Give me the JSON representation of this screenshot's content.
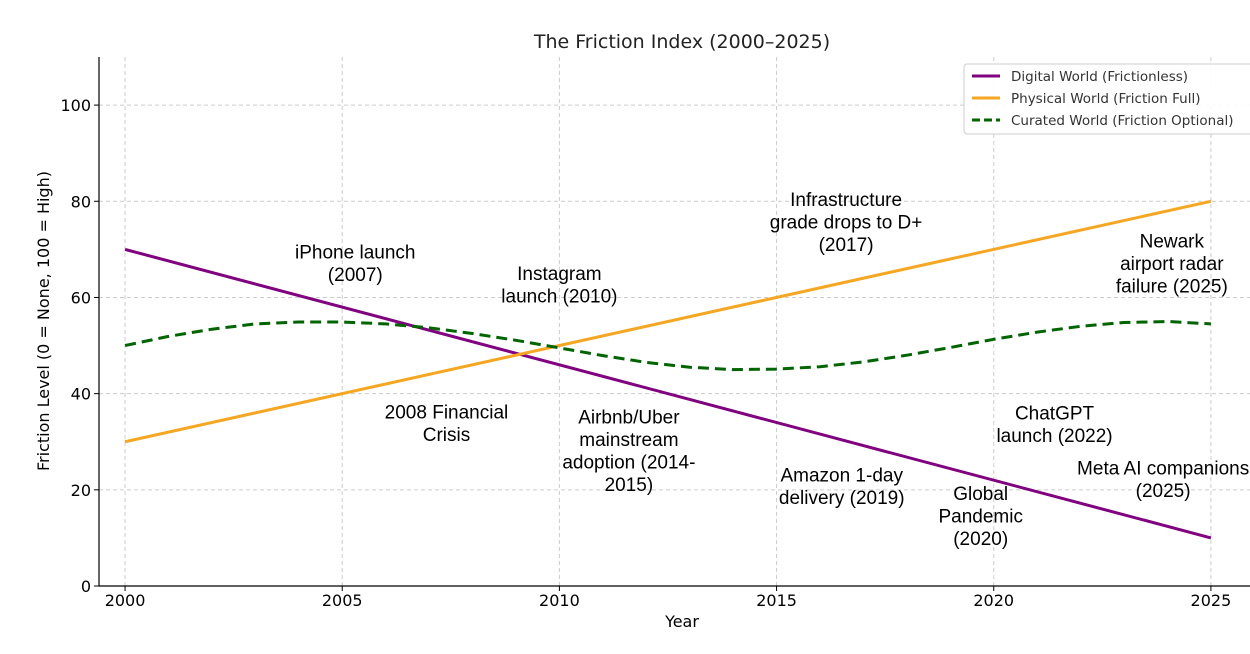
{
  "chart_data": {
    "type": "line",
    "title": "The Friction Index (2000–2025)",
    "xlabel": "Year",
    "ylabel": "Friction Level (0 = None, 100 = High)",
    "xlim": [
      1999.4,
      2025.9
    ],
    "ylim": [
      0,
      110
    ],
    "xticks": [
      2000,
      2005,
      2010,
      2015,
      2020,
      2025
    ],
    "yticks": [
      0,
      20,
      40,
      60,
      80,
      100
    ],
    "grid": true,
    "legend_position": "top-right",
    "series": [
      {
        "name": "Digital World (Frictionless)",
        "color": "#800080",
        "style": "solid",
        "x": [
          2000,
          2025
        ],
        "y": [
          70,
          10
        ]
      },
      {
        "name": "Physical World (Friction Full)",
        "color": "#f5a623",
        "style": "solid",
        "x": [
          2000,
          2025
        ],
        "y": [
          30,
          80
        ]
      },
      {
        "name": "Curated World (Friction Optional)",
        "color": "#006400",
        "style": "dashed",
        "x": [
          2000,
          2001,
          2002,
          2003,
          2004,
          2005,
          2006,
          2007,
          2008,
          2009,
          2010,
          2011,
          2012,
          2013,
          2014,
          2015,
          2016,
          2017,
          2018,
          2019,
          2020,
          2021,
          2022,
          2023,
          2024,
          2025
        ],
        "y": [
          50,
          51.9,
          53.4,
          54.5,
          54.9,
          54.9,
          54.5,
          53.7,
          52.5,
          51.1,
          49.5,
          47.9,
          46.5,
          45.5,
          45.0,
          45.1,
          45.6,
          46.6,
          48.0,
          49.6,
          51.3,
          52.8,
          54.0,
          54.8,
          55.0,
          54.5
        ]
      }
    ],
    "annotations": [
      {
        "lines": [
          "iPhone launch",
          "(2007)"
        ],
        "x": 2005.3,
        "y": 67.2
      },
      {
        "lines": [
          "Instagram",
          "launch (2010)"
        ],
        "x": 2010,
        "y": 62.7
      },
      {
        "lines": [
          "Infrastructure",
          "grade drops to D+",
          "(2017)"
        ],
        "x": 2016.6,
        "y": 75.8
      },
      {
        "lines": [
          "Newark",
          "airport radar",
          "failure (2025)"
        ],
        "x": 2024.1,
        "y": 67.2
      },
      {
        "lines": [
          "2008 Financial",
          "Crisis"
        ],
        "x": 2007.4,
        "y": 33.9
      },
      {
        "lines": [
          "Airbnb/Uber",
          "mainstream",
          "adoption (2014-",
          "2015)"
        ],
        "x": 2011.6,
        "y": 28.2
      },
      {
        "lines": [
          "Amazon 1-day",
          "delivery (2019)"
        ],
        "x": 2016.5,
        "y": 20.8
      },
      {
        "lines": [
          "Global",
          "Pandemic",
          "(2020)"
        ],
        "x": 2019.7,
        "y": 14.7
      },
      {
        "lines": [
          "ChatGPT",
          "launch (2022)"
        ],
        "x": 2021.4,
        "y": 33.7
      },
      {
        "lines": [
          "Meta AI companions",
          "(2025)"
        ],
        "x": 2023.9,
        "y": 22.3
      }
    ]
  }
}
